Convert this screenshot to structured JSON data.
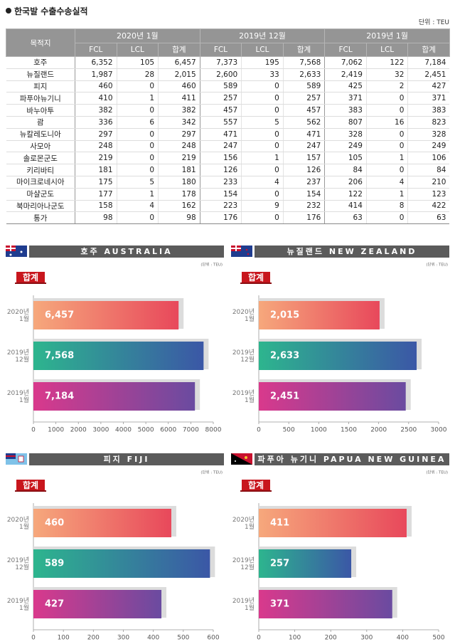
{
  "header": {
    "title": "한국발 수출수송실적",
    "unit": "단위 : TEU"
  },
  "table": {
    "destination_header": "목적지",
    "groups": [
      {
        "name": "2020년 1월",
        "columns": [
          "FCL",
          "LCL",
          "합계"
        ]
      },
      {
        "name": "2019년 12월",
        "columns": [
          "FCL",
          "LCL",
          "합계"
        ]
      },
      {
        "name": "2019년 1월",
        "columns": [
          "FCL",
          "LCL",
          "합계"
        ]
      }
    ],
    "rows": [
      [
        "호주",
        "6,352",
        "105",
        "6,457",
        "7,373",
        "195",
        "7,568",
        "7,062",
        "122",
        "7,184"
      ],
      [
        "뉴질랜드",
        "1,987",
        "28",
        "2,015",
        "2,600",
        "33",
        "2,633",
        "2,419",
        "32",
        "2,451"
      ],
      [
        "피지",
        "460",
        "0",
        "460",
        "589",
        "0",
        "589",
        "425",
        "2",
        "427"
      ],
      [
        "파푸아뉴기니",
        "410",
        "1",
        "411",
        "257",
        "0",
        "257",
        "371",
        "0",
        "371"
      ],
      [
        "바누아투",
        "382",
        "0",
        "382",
        "457",
        "0",
        "457",
        "383",
        "0",
        "383"
      ],
      [
        "괌",
        "336",
        "6",
        "342",
        "557",
        "5",
        "562",
        "807",
        "16",
        "823"
      ],
      [
        "뉴칼레도니아",
        "297",
        "0",
        "297",
        "471",
        "0",
        "471",
        "328",
        "0",
        "328"
      ],
      [
        "사모아",
        "248",
        "0",
        "248",
        "247",
        "0",
        "247",
        "249",
        "0",
        "249"
      ],
      [
        "솔로몬군도",
        "219",
        "0",
        "219",
        "156",
        "1",
        "157",
        "105",
        "1",
        "106"
      ],
      [
        "키리바티",
        "181",
        "0",
        "181",
        "126",
        "0",
        "126",
        "84",
        "0",
        "84"
      ],
      [
        "마이크로네시아",
        "175",
        "5",
        "180",
        "233",
        "4",
        "237",
        "206",
        "4",
        "210"
      ],
      [
        "마샬군도",
        "177",
        "1",
        "178",
        "154",
        "0",
        "154",
        "122",
        "1",
        "123"
      ],
      [
        "북마리아나군도",
        "158",
        "4",
        "162",
        "223",
        "9",
        "232",
        "414",
        "8",
        "422"
      ],
      [
        "통가",
        "98",
        "0",
        "98",
        "176",
        "0",
        "176",
        "63",
        "0",
        "63"
      ]
    ]
  },
  "chart_data": [
    {
      "type": "bar",
      "orientation": "horizontal",
      "title": "호주 AUSTRALIA",
      "subtitle": "(단위 : TEU)",
      "categories": [
        "2020년 1월",
        "2019년 12월",
        "2019년 1월"
      ],
      "series": [
        {
          "name": "합계",
          "colors": [
            [
              "#f6a87c",
              "#e8485b"
            ],
            [
              "#2db58e",
              "#3b57a6"
            ],
            [
              "#d9398c",
              "#6a4ba0"
            ]
          ],
          "values": [
            6457,
            7568,
            7184
          ],
          "value_labels": [
            "6,457",
            "7,568",
            "7,184"
          ]
        }
      ],
      "xlim": [
        0,
        8000
      ],
      "xticks": [
        0,
        1000,
        2000,
        3000,
        4000,
        5000,
        6000,
        7000,
        8000
      ]
    },
    {
      "type": "bar",
      "orientation": "horizontal",
      "title": "뉴질랜드 NEW ZEALAND",
      "subtitle": "(단위 : TEU)",
      "categories": [
        "2020년 1월",
        "2019년 12월",
        "2019년 1월"
      ],
      "series": [
        {
          "name": "합계",
          "colors": [
            [
              "#f6a87c",
              "#e8485b"
            ],
            [
              "#2db58e",
              "#3b57a6"
            ],
            [
              "#d9398c",
              "#6a4ba0"
            ]
          ],
          "values": [
            2015,
            2633,
            2451
          ],
          "value_labels": [
            "2,015",
            "2,633",
            "2,451"
          ]
        }
      ],
      "xlim": [
        0,
        3000
      ],
      "xticks": [
        0,
        500,
        1000,
        1500,
        2000,
        2500,
        3000
      ]
    },
    {
      "type": "bar",
      "orientation": "horizontal",
      "title": "피지 FIJI",
      "subtitle": "(단위 : TEU)",
      "categories": [
        "2020년 1월",
        "2019년 12월",
        "2019년 1월"
      ],
      "series": [
        {
          "name": "합계",
          "colors": [
            [
              "#f6a87c",
              "#e8485b"
            ],
            [
              "#2db58e",
              "#3b57a6"
            ],
            [
              "#d9398c",
              "#6a4ba0"
            ]
          ],
          "values": [
            460,
            589,
            427
          ],
          "value_labels": [
            "460",
            "589",
            "427"
          ]
        }
      ],
      "xlim": [
        0,
        600
      ],
      "xticks": [
        0,
        100,
        200,
        300,
        400,
        500,
        600
      ]
    },
    {
      "type": "bar",
      "orientation": "horizontal",
      "title": "파푸아 뉴기니 PAPUA NEW GUINEA",
      "subtitle": "(단위 : TEU)",
      "categories": [
        "2020년 1월",
        "2019년 12월",
        "2019년 1월"
      ],
      "series": [
        {
          "name": "합계",
          "colors": [
            [
              "#f6a87c",
              "#e8485b"
            ],
            [
              "#2db58e",
              "#3b57a6"
            ],
            [
              "#d9398c",
              "#6a4ba0"
            ]
          ],
          "values": [
            411,
            257,
            371
          ],
          "value_labels": [
            "411",
            "257",
            "371"
          ]
        }
      ],
      "xlim": [
        0,
        500
      ],
      "xticks": [
        0,
        100,
        200,
        300,
        400,
        500
      ]
    }
  ]
}
